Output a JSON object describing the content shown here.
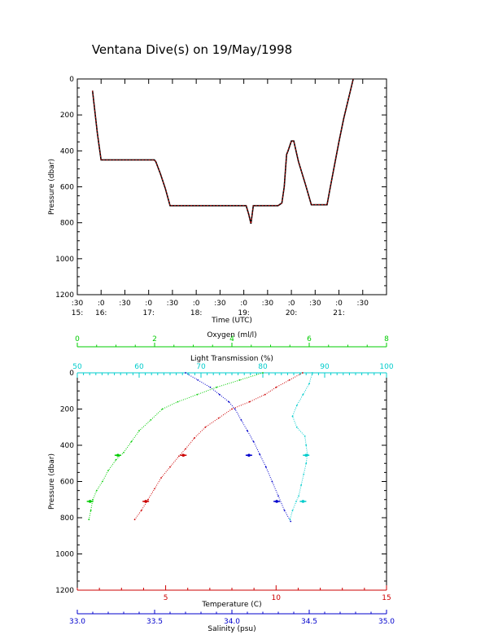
{
  "title": "Ventana Dive(s) on 19/May/1998",
  "colors": {
    "axis": "#000000",
    "trace_black": "#000000",
    "trace_red": "#cc0000",
    "temperature": "#cc0000",
    "salinity": "#0000cc",
    "oxygen": "#00cc00",
    "light_transmission": "#00cccc"
  },
  "chart_data": [
    {
      "type": "line",
      "xlabel": "Time (UTC)",
      "ylabel": "Pressure (dbar)",
      "ylim": [
        1200,
        0
      ],
      "y_ticks": [
        "0",
        "200",
        "400",
        "600",
        "800",
        "1000",
        "1200"
      ],
      "x_range_hours": [
        15.5,
        22.0
      ],
      "x_ticks": [
        {
          "t": 15.5,
          "label": ":30"
        },
        {
          "t": 16.0,
          "label": ":0"
        },
        {
          "t": 16.5,
          "label": ":30"
        },
        {
          "t": 17.0,
          "label": ":0"
        },
        {
          "t": 17.5,
          "label": ":30"
        },
        {
          "t": 18.0,
          "label": ":0"
        },
        {
          "t": 18.5,
          "label": ":30"
        },
        {
          "t": 19.0,
          "label": ":0"
        },
        {
          "t": 19.5,
          "label": ":30"
        },
        {
          "t": 20.0,
          "label": ":0"
        },
        {
          "t": 20.5,
          "label": ":30"
        },
        {
          "t": 21.0,
          "label": ":0"
        },
        {
          "t": 21.5,
          "label": ":30"
        }
      ],
      "hour_labels": [
        {
          "t": 15.5,
          "label": "15:"
        },
        {
          "t": 16.0,
          "label": "16:"
        },
        {
          "t": 17.0,
          "label": "17:"
        },
        {
          "t": 18.0,
          "label": "18:"
        },
        {
          "t": 19.0,
          "label": "19:"
        },
        {
          "t": 20.0,
          "label": "20:"
        },
        {
          "t": 21.0,
          "label": "21:"
        }
      ],
      "series": [
        {
          "x": [
            15.82,
            15.92,
            16.0,
            16.15,
            16.5,
            16.9,
            17.12,
            17.15,
            17.25,
            17.35,
            17.45,
            17.6,
            18.0,
            18.5,
            19.0,
            19.05,
            19.1,
            19.15,
            19.2,
            19.3,
            19.5,
            19.65,
            19.72,
            19.8,
            19.85,
            19.9,
            19.93,
            20.0,
            20.05,
            20.15,
            20.3,
            20.42,
            20.5,
            20.6,
            20.75,
            20.82,
            21.0,
            21.1,
            21.3
          ],
          "y": [
            65,
            300,
            450,
            450,
            450,
            450,
            450,
            460,
            530,
            610,
            705,
            705,
            705,
            705,
            705,
            705,
            750,
            805,
            705,
            705,
            705,
            705,
            705,
            690,
            600,
            420,
            400,
            345,
            345,
            460,
            590,
            700,
            700,
            700,
            700,
            600,
            350,
            220,
            0
          ]
        }
      ]
    },
    {
      "type": "scatter",
      "ylabel": "Pressure (dbar)",
      "ylim": [
        1200,
        0
      ],
      "y_ticks": [
        "0",
        "200",
        "400",
        "600",
        "800",
        "1000",
        "1200"
      ],
      "axes": {
        "temperature": {
          "label": "Temperature (C)",
          "range": [
            1,
            15
          ],
          "major": [
            5,
            10,
            15
          ],
          "minor_step": 1
        },
        "salinity": {
          "label": "Salinity (psu)",
          "range": [
            33.0,
            35.0
          ],
          "major": [
            "33.0",
            "33.5",
            "34.0",
            "34.5",
            "35.0"
          ]
        },
        "oxygen": {
          "label": "Oxygen (ml/l)",
          "range": [
            0,
            8
          ],
          "major": [
            "0",
            "2",
            "4",
            "6",
            "8"
          ]
        },
        "light_transmission": {
          "label": "Light Transmission (%)",
          "range": [
            50,
            100
          ],
          "major": [
            "50",
            "60",
            "70",
            "80",
            "90",
            "100"
          ]
        }
      },
      "series": [
        {
          "name": "Temperature",
          "x": [
            11.2,
            10.6,
            10.0,
            9.5,
            8.8,
            8.0,
            7.4,
            6.8,
            6.3,
            5.9,
            5.6,
            5.2,
            4.8,
            4.5,
            4.2,
            3.9,
            3.6
          ],
          "y": [
            0,
            40,
            80,
            120,
            160,
            200,
            250,
            300,
            360,
            420,
            460,
            520,
            580,
            640,
            700,
            760,
            810
          ]
        },
        {
          "name": "Salinity",
          "x": [
            33.7,
            33.78,
            33.86,
            33.92,
            33.98,
            34.02,
            34.06,
            34.1,
            34.14,
            34.18,
            34.22,
            34.26,
            34.3,
            34.34,
            34.38
          ],
          "y": [
            0,
            40,
            80,
            120,
            160,
            200,
            260,
            320,
            380,
            450,
            520,
            600,
            680,
            760,
            820
          ]
        },
        {
          "name": "Oxygen",
          "x": [
            4.8,
            4.2,
            3.6,
            3.1,
            2.6,
            2.2,
            1.9,
            1.6,
            1.4,
            1.2,
            1.0,
            0.8,
            0.65,
            0.5,
            0.4,
            0.35,
            0.3
          ],
          "y": [
            0,
            40,
            80,
            120,
            160,
            200,
            260,
            320,
            380,
            440,
            480,
            540,
            600,
            650,
            700,
            760,
            810
          ]
        },
        {
          "name": "Light Transmission",
          "x": [
            88.0,
            87.5,
            86.5,
            85.5,
            84.8,
            85.5,
            86.8,
            87.0,
            87.2,
            87.0,
            86.6,
            86.2,
            85.8,
            85.4,
            84.8,
            84.4
          ],
          "y": [
            0,
            60,
            120,
            180,
            240,
            300,
            350,
            400,
            450,
            500,
            560,
            620,
            680,
            710,
            760,
            810
          ]
        }
      ],
      "markers": [
        {
          "series": "Temperature",
          "x": [
            5.8,
            4.1
          ],
          "y": [
            455,
            710
          ]
        },
        {
          "series": "Salinity",
          "x": [
            34.11,
            34.29
          ],
          "y": [
            455,
            710
          ]
        },
        {
          "series": "Oxygen",
          "x": [
            1.05,
            0.33
          ],
          "y": [
            455,
            710
          ]
        },
        {
          "series": "Light Transmission",
          "x": [
            87.0,
            86.5
          ],
          "y": [
            455,
            710
          ]
        }
      ]
    }
  ]
}
